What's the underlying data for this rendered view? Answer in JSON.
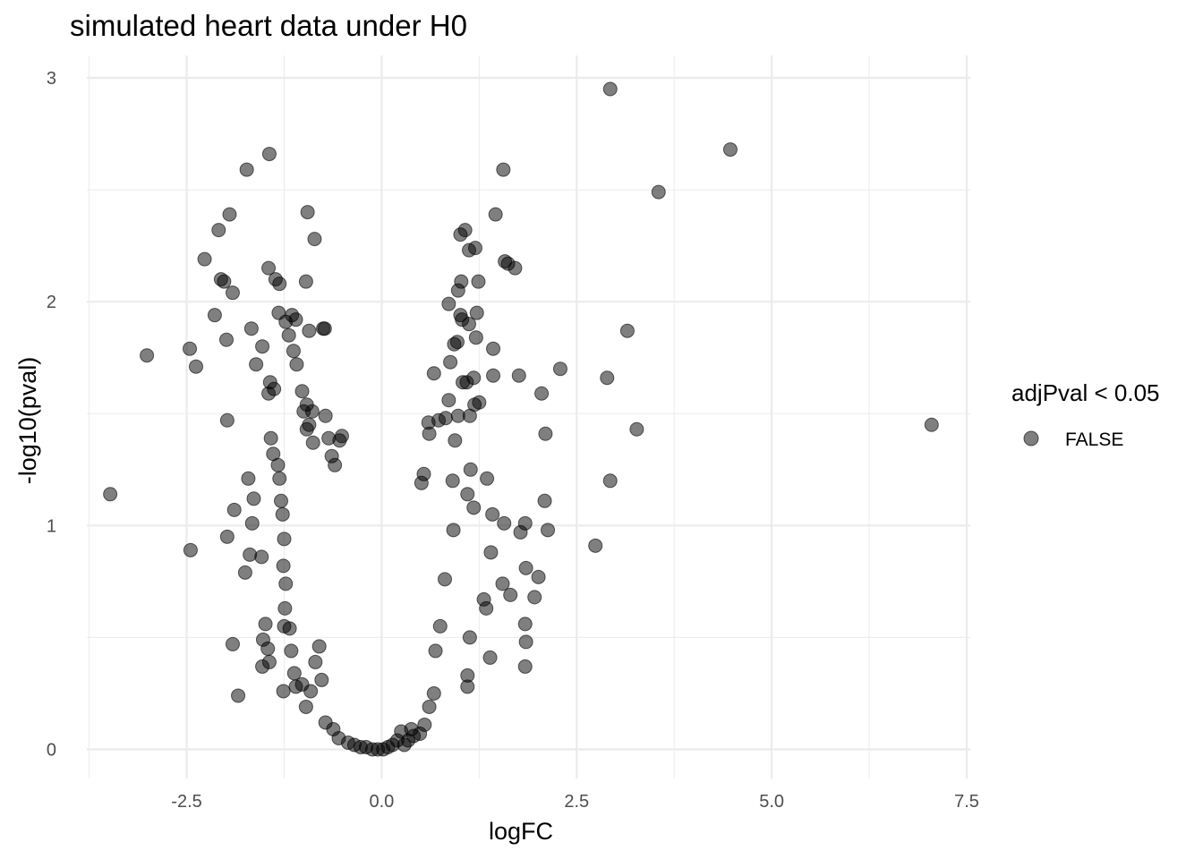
{
  "chart_data": {
    "type": "scatter",
    "title": "simulated heart data under H0",
    "xlabel": "logFC",
    "ylabel": "-log10(pval)",
    "xlim": [
      -3.78,
      7.5
    ],
    "ylim": [
      -0.13,
      3.1
    ],
    "x_ticks": [
      -2.5,
      0.0,
      2.5,
      5.0,
      7.5
    ],
    "x_tick_labels": [
      "-2.5",
      "0.0",
      "2.5",
      "5.0",
      "7.5"
    ],
    "y_ticks": [
      0,
      1,
      2,
      3
    ],
    "y_tick_labels": [
      "0",
      "1",
      "2",
      "3"
    ],
    "grid": true,
    "legend": {
      "title": "adjPval < 0.05",
      "position": "right",
      "entries": [
        {
          "label": "FALSE",
          "color": "#000000"
        }
      ]
    },
    "point_color": "#000000",
    "point_alpha": 0.5,
    "series": [
      {
        "name": "FALSE",
        "points": [
          [
            2.93,
            2.95
          ],
          [
            4.47,
            2.68
          ],
          [
            3.55,
            2.49
          ],
          [
            3.15,
            1.87
          ],
          [
            2.29,
            1.7
          ],
          [
            2.89,
            1.66
          ],
          [
            3.27,
            1.43
          ],
          [
            2.93,
            1.2
          ],
          [
            2.74,
            0.91
          ],
          [
            7.05,
            1.45
          ],
          [
            2.05,
            1.59
          ],
          [
            2.1,
            1.41
          ],
          [
            2.09,
            1.11
          ],
          [
            2.13,
            0.98
          ],
          [
            2.01,
            0.77
          ],
          [
            1.96,
            0.68
          ],
          [
            1.85,
            0.81
          ],
          [
            1.84,
            0.56
          ],
          [
            1.85,
            0.48
          ],
          [
            1.84,
            0.37
          ],
          [
            1.84,
            1.01
          ],
          [
            1.78,
            0.97
          ],
          [
            1.76,
            1.67
          ],
          [
            1.71,
            2.15
          ],
          [
            1.65,
            0.69
          ],
          [
            1.56,
            2.59
          ],
          [
            1.58,
            2.18
          ],
          [
            1.62,
            2.17
          ],
          [
            1.57,
            1.01
          ],
          [
            1.55,
            0.74
          ],
          [
            1.46,
            2.39
          ],
          [
            1.43,
            1.67
          ],
          [
            1.43,
            1.79
          ],
          [
            1.42,
            1.05
          ],
          [
            1.4,
            0.88
          ],
          [
            1.39,
            0.41
          ],
          [
            1.35,
            1.21
          ],
          [
            1.31,
            0.67
          ],
          [
            1.34,
            0.63
          ],
          [
            1.12,
            2.23
          ],
          [
            1.2,
            2.24
          ],
          [
            1.24,
            2.09
          ],
          [
            1.22,
            1.95
          ],
          [
            1.21,
            1.84
          ],
          [
            1.25,
            1.55
          ],
          [
            1.18,
            1.66
          ],
          [
            1.09,
            1.64
          ],
          [
            1.14,
            1.25
          ],
          [
            1.1,
            1.14
          ],
          [
            1.18,
            1.08
          ],
          [
            1.1,
            0.28
          ],
          [
            1.01,
            2.3
          ],
          [
            1.07,
            2.32
          ],
          [
            1.02,
            2.09
          ],
          [
            0.98,
            2.05
          ],
          [
            1.01,
            1.94
          ],
          [
            1.03,
            1.92
          ],
          [
            0.93,
            1.81
          ],
          [
            0.97,
            1.82
          ],
          [
            0.98,
            1.49
          ],
          [
            1.04,
            1.64
          ],
          [
            1.12,
            1.9
          ],
          [
            1.13,
            1.49
          ],
          [
            1.19,
            1.54
          ],
          [
            1.13,
            0.5
          ],
          [
            1.1,
            0.33
          ],
          [
            0.86,
            1.99
          ],
          [
            0.88,
            1.73
          ],
          [
            0.82,
            1.48
          ],
          [
            0.94,
            1.38
          ],
          [
            0.86,
            1.56
          ],
          [
            0.73,
            1.47
          ],
          [
            0.67,
            1.68
          ],
          [
            0.6,
            1.46
          ],
          [
            0.61,
            1.41
          ],
          [
            0.54,
            1.23
          ],
          [
            0.51,
            1.19
          ],
          [
            0.91,
            1.2
          ],
          [
            0.92,
            0.98
          ],
          [
            0.81,
            0.76
          ],
          [
            0.75,
            0.55
          ],
          [
            0.69,
            0.44
          ],
          [
            0.67,
            0.25
          ],
          [
            0.61,
            0.19
          ],
          [
            0.55,
            0.11
          ],
          [
            0.49,
            0.07
          ],
          [
            0.41,
            0.06
          ],
          [
            0.38,
            0.09
          ],
          [
            0.34,
            0.04
          ],
          [
            0.29,
            0.02
          ],
          [
            -3.48,
            1.14
          ],
          [
            -3.01,
            1.76
          ],
          [
            -2.45,
            0.89
          ],
          [
            -2.46,
            1.79
          ],
          [
            -2.38,
            1.71
          ],
          [
            -2.27,
            2.19
          ],
          [
            -2.09,
            2.32
          ],
          [
            -2.06,
            2.1
          ],
          [
            -1.95,
            2.39
          ],
          [
            -2.02,
            2.09
          ],
          [
            -1.91,
            2.04
          ],
          [
            -2.14,
            1.94
          ],
          [
            -1.99,
            1.83
          ],
          [
            -1.98,
            1.47
          ],
          [
            -1.98,
            0.95
          ],
          [
            -1.89,
            1.07
          ],
          [
            -1.91,
            0.47
          ],
          [
            -1.84,
            0.24
          ],
          [
            -1.73,
            2.59
          ],
          [
            -1.44,
            2.66
          ],
          [
            -1.45,
            2.15
          ],
          [
            -1.36,
            2.1
          ],
          [
            -1.31,
            2.08
          ],
          [
            -1.67,
            1.88
          ],
          [
            -1.53,
            1.8
          ],
          [
            -1.61,
            1.72
          ],
          [
            -1.43,
            1.64
          ],
          [
            -1.45,
            1.59
          ],
          [
            -1.38,
            1.61
          ],
          [
            -1.71,
            1.21
          ],
          [
            -1.64,
            1.12
          ],
          [
            -1.66,
            1.01
          ],
          [
            -1.69,
            0.87
          ],
          [
            -1.75,
            0.79
          ],
          [
            -1.54,
            0.86
          ],
          [
            -1.49,
            0.56
          ],
          [
            -1.52,
            0.49
          ],
          [
            -1.53,
            0.37
          ],
          [
            -1.46,
            0.45
          ],
          [
            -1.44,
            0.39
          ],
          [
            -1.42,
            1.39
          ],
          [
            -1.39,
            1.32
          ],
          [
            -1.33,
            1.27
          ],
          [
            -1.31,
            1.21
          ],
          [
            -1.29,
            1.11
          ],
          [
            -1.27,
            1.05
          ],
          [
            -1.25,
            0.94
          ],
          [
            -1.26,
            0.82
          ],
          [
            -1.23,
            0.74
          ],
          [
            -1.24,
            0.63
          ],
          [
            -1.25,
            0.55
          ],
          [
            -1.26,
            0.26
          ],
          [
            -1.32,
            1.95
          ],
          [
            -1.23,
            1.91
          ],
          [
            -1.15,
            1.94
          ],
          [
            -1.1,
            1.92
          ],
          [
            -1.19,
            1.85
          ],
          [
            -1.13,
            1.78
          ],
          [
            -1.09,
            1.72
          ],
          [
            -1.02,
            1.6
          ],
          [
            -0.96,
            1.54
          ],
          [
            -1.0,
            1.51
          ],
          [
            -0.93,
            1.45
          ],
          [
            -0.89,
            1.51
          ],
          [
            -0.96,
            1.43
          ],
          [
            -0.88,
            1.37
          ],
          [
            -0.95,
            2.4
          ],
          [
            -0.86,
            2.28
          ],
          [
            -0.97,
            2.09
          ],
          [
            -0.93,
            1.87
          ],
          [
            -0.75,
            1.88
          ],
          [
            -0.73,
            1.88
          ],
          [
            -1.18,
            0.54
          ],
          [
            -1.16,
            0.44
          ],
          [
            -1.12,
            0.34
          ],
          [
            -1.1,
            0.28
          ],
          [
            -1.02,
            0.29
          ],
          [
            -0.97,
            0.19
          ],
          [
            -0.91,
            0.26
          ],
          [
            -0.85,
            0.39
          ],
          [
            -0.8,
            0.46
          ],
          [
            -0.77,
            0.31
          ],
          [
            -0.72,
            1.49
          ],
          [
            -0.68,
            1.39
          ],
          [
            -0.64,
            1.31
          ],
          [
            -0.6,
            1.27
          ],
          [
            -0.54,
            1.38
          ],
          [
            -0.51,
            1.4
          ],
          [
            -0.72,
            0.12
          ],
          [
            -0.62,
            0.09
          ],
          [
            -0.55,
            0.05
          ],
          [
            -0.43,
            0.03
          ],
          [
            -0.35,
            0.02
          ],
          [
            -0.27,
            0.01
          ],
          [
            -0.2,
            0.01
          ],
          [
            -0.12,
            0.0
          ],
          [
            -0.05,
            0.0
          ],
          [
            0.02,
            0.0
          ],
          [
            0.08,
            0.01
          ],
          [
            0.14,
            0.02
          ],
          [
            0.2,
            0.04
          ],
          [
            0.25,
            0.08
          ]
        ]
      }
    ]
  }
}
